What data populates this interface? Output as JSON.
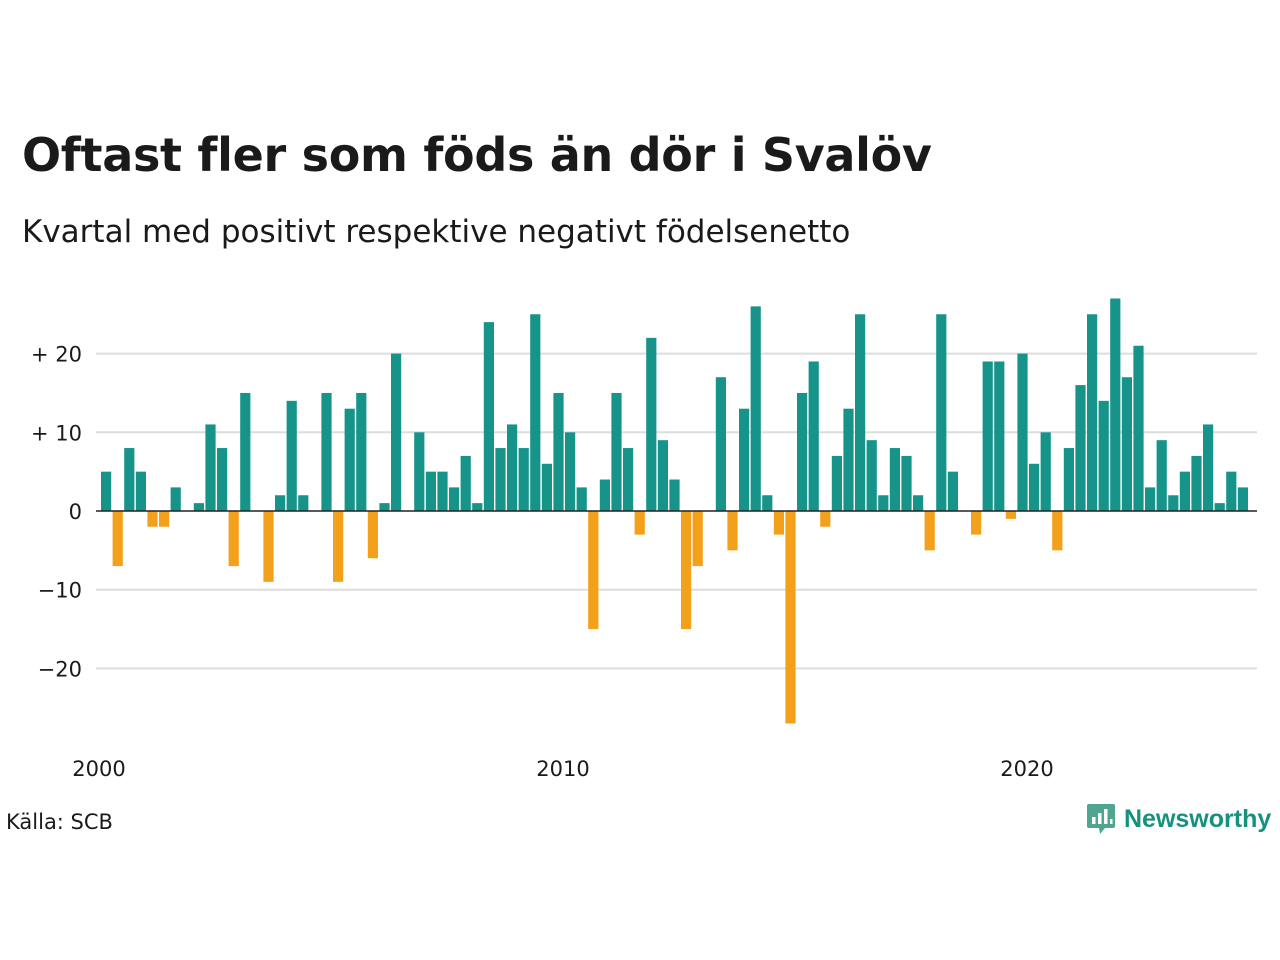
{
  "title": "Oftast fler som föds än dör i Svalöv",
  "subtitle": "Kvartal med positivt respektive negativt födelsenetto",
  "source": "Källa: SCB",
  "brand": {
    "name": "Newsworthy",
    "logo_icon": "newsworthy-chart-bubble-icon"
  },
  "colors": {
    "positive": "#17948a",
    "negative": "#f3a01b",
    "grid": "#dddddd",
    "zero_line": "#222222"
  },
  "chart_data": {
    "type": "bar",
    "title": "Oftast fler som föds än dör i Svalöv",
    "subtitle": "Kvartal med positivt respektive negativt födelsenetto",
    "x_start": "2000 Q1",
    "x_frequency": "quarter",
    "ylim": [
      -27,
      27
    ],
    "yticks": [
      -20,
      -10,
      0,
      10,
      20
    ],
    "ytick_labels": [
      "−20",
      "−10",
      "0",
      "+ 10",
      "+ 20"
    ],
    "xticks": [
      {
        "index": 0,
        "label": "2000"
      },
      {
        "index": 40,
        "label": "2010"
      },
      {
        "index": 80,
        "label": "2020"
      }
    ],
    "grid": true,
    "legend": "none",
    "values": [
      5,
      -7,
      8,
      5,
      -2,
      -2,
      3,
      0,
      1,
      11,
      8,
      -7,
      15,
      0,
      -9,
      2,
      14,
      2,
      0,
      15,
      -9,
      13,
      15,
      -6,
      1,
      20,
      0,
      10,
      5,
      5,
      3,
      7,
      1,
      24,
      8,
      11,
      8,
      25,
      6,
      15,
      10,
      3,
      -15,
      4,
      15,
      8,
      -3,
      22,
      9,
      4,
      -15,
      -7,
      0,
      17,
      -5,
      13,
      26,
      2,
      -3,
      -27,
      15,
      19,
      -2,
      7,
      13,
      25,
      9,
      2,
      8,
      7,
      2,
      -5,
      25,
      5,
      0,
      -3,
      19,
      19,
      -1,
      20,
      6,
      10,
      -5,
      8,
      16,
      25,
      14,
      27,
      17,
      21,
      3,
      9,
      2,
      5,
      7,
      11,
      1,
      5,
      3
    ]
  }
}
